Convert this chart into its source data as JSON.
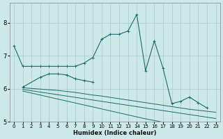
{
  "xlabel": "Humidex (Indice chaleur)",
  "bg_color": "#cce8e8",
  "grid_color": "#aacccc",
  "line_color": "#1a6b6b",
  "xlim": [
    -0.5,
    23.5
  ],
  "ylim": [
    5.0,
    8.6
  ],
  "yticks": [
    5,
    6,
    7,
    8
  ],
  "xticks": [
    0,
    1,
    2,
    3,
    4,
    5,
    6,
    7,
    8,
    9,
    10,
    11,
    12,
    13,
    14,
    15,
    16,
    17,
    18,
    19,
    20,
    21,
    22,
    23
  ],
  "series": [
    {
      "x": [
        0,
        1,
        2,
        3,
        4,
        5,
        6,
        7,
        8,
        9,
        10,
        11,
        12,
        13,
        14,
        15,
        16,
        17,
        18,
        19,
        20,
        21,
        22,
        23
      ],
      "y": [
        7.3,
        6.68,
        6.68,
        6.68,
        6.68,
        6.68,
        6.68,
        6.68,
        6.78,
        6.95,
        7.5,
        7.65,
        7.65,
        7.75,
        8.25,
        6.55,
        7.45,
        6.62,
        5.55,
        5.62,
        5.75,
        5.58,
        5.42,
        null
      ],
      "marker": true
    },
    {
      "x": [
        1,
        3,
        4,
        5,
        6,
        7,
        8,
        9
      ],
      "y": [
        6.05,
        6.35,
        6.45,
        6.45,
        6.42,
        6.3,
        6.25,
        6.2
      ],
      "marker": true
    },
    {
      "x": [
        1,
        2,
        3,
        4,
        5,
        6,
        7,
        8,
        9,
        10,
        11,
        12,
        13,
        14,
        15,
        16,
        17,
        18,
        19,
        20,
        21,
        22,
        23
      ],
      "y": [
        6.03,
        6.01,
        5.99,
        5.97,
        5.95,
        5.92,
        5.89,
        5.85,
        5.81,
        5.78,
        5.74,
        5.7,
        5.66,
        5.62,
        5.58,
        5.54,
        5.5,
        5.46,
        5.42,
        5.38,
        5.35,
        5.32,
        5.29
      ],
      "marker": false
    },
    {
      "x": [
        1,
        2,
        3,
        4,
        5,
        6,
        7,
        8,
        9,
        10,
        11,
        12,
        13,
        14,
        15,
        16,
        17,
        18,
        19,
        20,
        21,
        22,
        23
      ],
      "y": [
        5.98,
        5.94,
        5.9,
        5.86,
        5.82,
        5.78,
        5.74,
        5.7,
        5.66,
        5.62,
        5.58,
        5.54,
        5.5,
        5.46,
        5.42,
        5.38,
        5.34,
        5.3,
        5.26,
        5.22,
        5.18,
        5.14,
        5.1
      ],
      "marker": false
    },
    {
      "x": [
        1,
        2,
        3,
        4,
        5,
        6,
        7,
        8,
        9,
        10,
        11,
        12,
        13,
        14,
        15,
        16,
        17,
        18,
        19,
        20,
        21,
        22,
        23
      ],
      "y": [
        5.93,
        5.87,
        5.81,
        5.75,
        5.69,
        5.63,
        5.57,
        5.51,
        5.45,
        5.39,
        5.33,
        5.27,
        5.21,
        5.15,
        5.09,
        5.04,
        4.99,
        4.95,
        4.91,
        4.87,
        4.84,
        4.81,
        4.78
      ],
      "marker": false
    }
  ]
}
